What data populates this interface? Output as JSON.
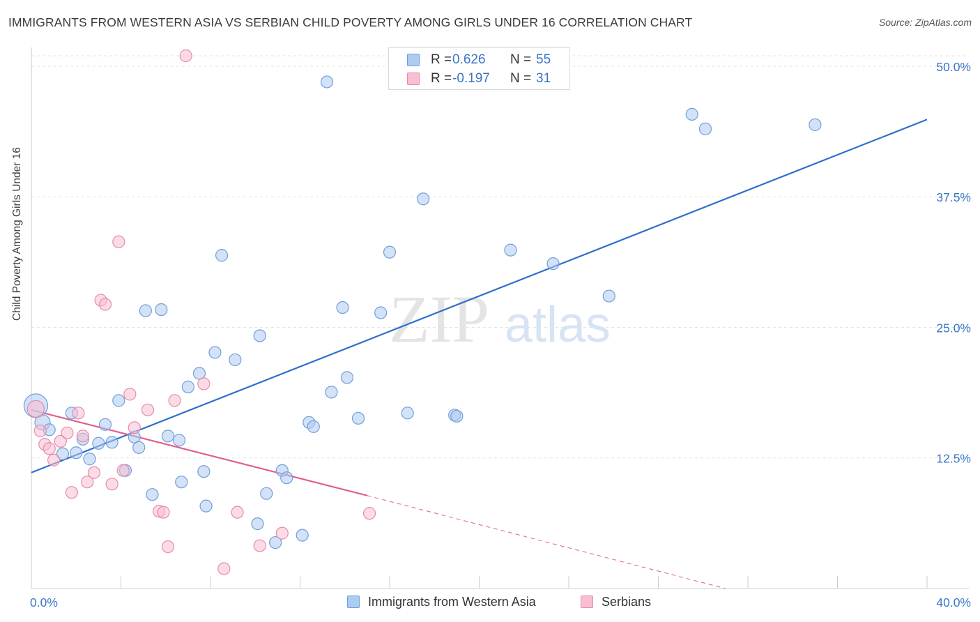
{
  "header": {
    "title": "IMMIGRANTS FROM WESTERN ASIA VS SERBIAN CHILD POVERTY AMONG GIRLS UNDER 16 CORRELATION CHART",
    "source": "Source: ZipAtlas.com"
  },
  "watermark": {
    "part1": "ZIP",
    "part2": "atlas"
  },
  "legend": {
    "r_label": "R =",
    "n_label": "N =",
    "series": [
      {
        "name": "Immigrants from Western Asia",
        "r": "0.626",
        "n": "55",
        "fill": "#aecbf0",
        "stroke": "#6f9fdc"
      },
      {
        "name": "Serbians",
        "r": "-0.197",
        "n": "31",
        "fill": "#f8bfd2",
        "stroke": "#e88aab"
      }
    ]
  },
  "colors": {
    "blue_line": "#2e6fcc",
    "pink_line": "#e0608a",
    "axis_text": "#3a76c4",
    "grid": "#e3e3e3"
  },
  "chart_data": {
    "type": "scatter",
    "title": "IMMIGRANTS FROM WESTERN ASIA VS SERBIAN CHILD POVERTY AMONG GIRLS UNDER 16 CORRELATION CHART",
    "xlabel": "",
    "ylabel": "Child Poverty Among Girls Under 16",
    "x_tick_labels": [
      "0.0%",
      "40.0%"
    ],
    "y_tick_labels": [
      "12.5%",
      "25.0%",
      "37.5%",
      "50.0%"
    ],
    "xlim": [
      0,
      40
    ],
    "ylim": [
      0,
      51
    ],
    "y_ticks": [
      12.5,
      25.0,
      37.5,
      50.0
    ],
    "grid": true,
    "legend_placement": "top-center",
    "series": [
      {
        "name": "Immigrants from Western Asia",
        "color": "#6f9fdc",
        "points": [
          [
            0.2,
            17.5
          ],
          [
            0.5,
            15.9
          ],
          [
            0.8,
            15.2
          ],
          [
            1.4,
            12.9
          ],
          [
            1.8,
            16.8
          ],
          [
            2.0,
            13.0
          ],
          [
            2.3,
            14.3
          ],
          [
            2.6,
            12.4
          ],
          [
            3.0,
            13.9
          ],
          [
            3.3,
            15.7
          ],
          [
            3.6,
            14.0
          ],
          [
            3.9,
            18.0
          ],
          [
            4.2,
            11.3
          ],
          [
            4.6,
            14.5
          ],
          [
            4.8,
            13.5
          ],
          [
            5.1,
            26.6
          ],
          [
            5.4,
            9.0
          ],
          [
            5.8,
            26.7
          ],
          [
            6.1,
            14.6
          ],
          [
            6.6,
            14.2
          ],
          [
            6.7,
            10.2
          ],
          [
            7.0,
            19.3
          ],
          [
            7.5,
            20.6
          ],
          [
            7.7,
            11.2
          ],
          [
            7.8,
            7.9
          ],
          [
            8.2,
            22.6
          ],
          [
            8.5,
            31.9
          ],
          [
            9.1,
            21.9
          ],
          [
            10.1,
            6.2
          ],
          [
            10.2,
            24.2
          ],
          [
            10.5,
            9.1
          ],
          [
            10.9,
            4.4
          ],
          [
            11.2,
            11.3
          ],
          [
            11.4,
            10.6
          ],
          [
            12.1,
            5.1
          ],
          [
            12.4,
            15.9
          ],
          [
            12.6,
            15.5
          ],
          [
            13.2,
            48.5
          ],
          [
            13.4,
            18.8
          ],
          [
            13.9,
            26.9
          ],
          [
            14.1,
            20.2
          ],
          [
            14.6,
            16.3
          ],
          [
            15.6,
            26.4
          ],
          [
            16.0,
            32.2
          ],
          [
            16.8,
            16.8
          ],
          [
            17.5,
            37.3
          ],
          [
            18.9,
            16.6
          ],
          [
            19.0,
            16.5
          ],
          [
            21.4,
            32.4
          ],
          [
            21.5,
            48.6
          ],
          [
            23.3,
            31.1
          ],
          [
            25.8,
            28.0
          ],
          [
            29.5,
            45.4
          ],
          [
            30.1,
            44.0
          ],
          [
            35.0,
            44.4
          ]
        ]
      },
      {
        "name": "Serbians",
        "color": "#e88aab",
        "points": [
          [
            0.2,
            17.2
          ],
          [
            0.4,
            15.1
          ],
          [
            0.6,
            13.8
          ],
          [
            0.8,
            13.4
          ],
          [
            1.0,
            12.3
          ],
          [
            1.3,
            14.1
          ],
          [
            1.6,
            14.9
          ],
          [
            1.8,
            9.2
          ],
          [
            2.1,
            16.8
          ],
          [
            2.3,
            14.6
          ],
          [
            2.5,
            10.2
          ],
          [
            2.8,
            11.1
          ],
          [
            3.1,
            27.6
          ],
          [
            3.3,
            27.2
          ],
          [
            3.6,
            10.0
          ],
          [
            3.9,
            33.2
          ],
          [
            4.1,
            11.3
          ],
          [
            4.4,
            18.6
          ],
          [
            4.6,
            15.4
          ],
          [
            5.2,
            17.1
          ],
          [
            5.7,
            7.4
          ],
          [
            5.9,
            7.3
          ],
          [
            6.1,
            4.0
          ],
          [
            6.4,
            18.0
          ],
          [
            6.9,
            51.0
          ],
          [
            7.7,
            19.6
          ],
          [
            8.6,
            1.9
          ],
          [
            9.2,
            7.3
          ],
          [
            10.2,
            4.1
          ],
          [
            11.2,
            5.3
          ],
          [
            15.1,
            7.2
          ]
        ]
      }
    ],
    "trendlines": [
      {
        "series": "Immigrants from Western Asia",
        "from": [
          0,
          11.1
        ],
        "to": [
          40,
          44.9
        ],
        "style": "solid"
      },
      {
        "series": "Serbians",
        "from": [
          0,
          17.1
        ],
        "to": [
          15.0,
          8.9
        ],
        "style": "solid"
      },
      {
        "series": "Serbians",
        "from": [
          15.0,
          8.9
        ],
        "to": [
          31.0,
          0.0
        ],
        "style": "dashed"
      }
    ]
  }
}
